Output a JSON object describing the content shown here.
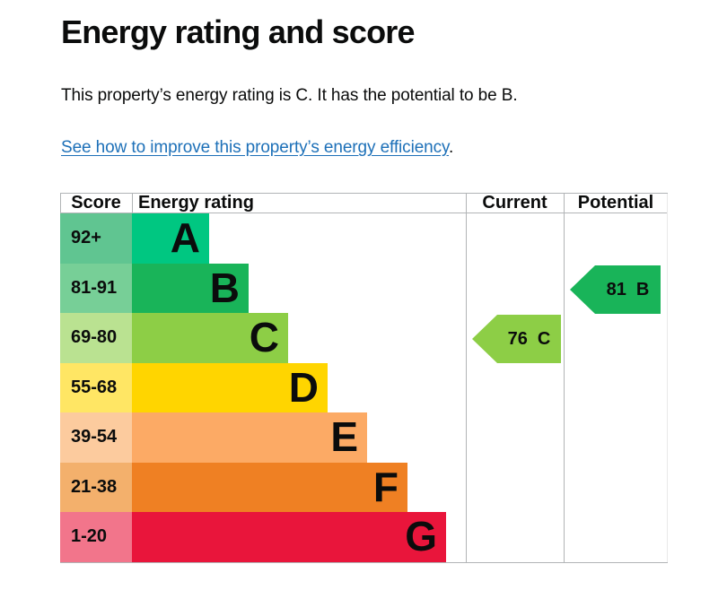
{
  "header": {
    "title": "Energy rating and score"
  },
  "summary": {
    "text": "This property’s energy rating is C. It has the potential to be B."
  },
  "improve_link": {
    "text": "See how to improve this property’s energy efficiency",
    "suffix": ".",
    "color": "#1d70b8"
  },
  "chart": {
    "columns": {
      "score": "Score",
      "rating": "Energy rating",
      "current": "Current",
      "potential": "Potential"
    },
    "bands": [
      {
        "score": "92+",
        "letter": "A",
        "bar_color": "#00c781",
        "cell_color": "#60c591"
      },
      {
        "score": "81-91",
        "letter": "B",
        "bar_color": "#19b459",
        "cell_color": "#77cf97"
      },
      {
        "score": "69-80",
        "letter": "C",
        "bar_color": "#8dce46",
        "cell_color": "#bae291"
      },
      {
        "score": "55-68",
        "letter": "D",
        "bar_color": "#ffd500",
        "cell_color": "#ffe664"
      },
      {
        "score": "39-54",
        "letter": "E",
        "bar_color": "#fcaa65",
        "cell_color": "#fccb9e"
      },
      {
        "score": "21-38",
        "letter": "F",
        "bar_color": "#ef8023",
        "cell_color": "#f3b06c"
      },
      {
        "score": "1-20",
        "letter": "G",
        "bar_color": "#e9153b",
        "cell_color": "#f2758b"
      }
    ],
    "current": {
      "score": "76",
      "letter": "C",
      "color": "#8dce46"
    },
    "potential": {
      "score": "81",
      "letter": "B",
      "color": "#19b459"
    }
  },
  "chart_data": {
    "type": "table",
    "title": "Energy rating and score",
    "columns": [
      "Score",
      "Energy rating",
      "Current",
      "Potential"
    ],
    "bands": [
      {
        "score_range": "92+",
        "rating": "A",
        "color": "#00c781"
      },
      {
        "score_range": "81-91",
        "rating": "B",
        "color": "#19b459"
      },
      {
        "score_range": "69-80",
        "rating": "C",
        "color": "#8dce46"
      },
      {
        "score_range": "55-68",
        "rating": "D",
        "color": "#ffd500"
      },
      {
        "score_range": "39-54",
        "rating": "E",
        "color": "#fcaa65"
      },
      {
        "score_range": "21-38",
        "rating": "F",
        "color": "#ef8023"
      },
      {
        "score_range": "1-20",
        "rating": "G",
        "color": "#e9153b"
      }
    ],
    "current": {
      "score": 76,
      "rating": "C"
    },
    "potential": {
      "score": 81,
      "rating": "B"
    }
  }
}
